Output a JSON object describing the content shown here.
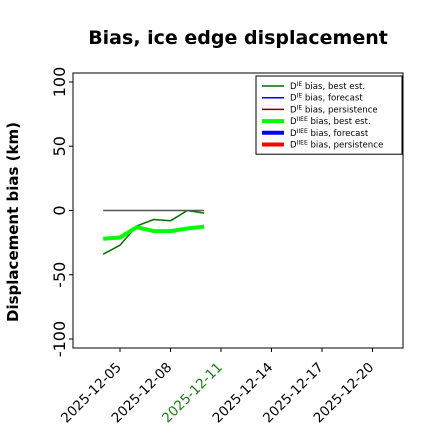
{
  "chart_data": {
    "type": "line",
    "title": "Bias, ice edge displacement",
    "xlabel": "",
    "ylabel": "Displacement bias (km)",
    "ylim": [
      -107,
      107
    ],
    "yticks": [
      100,
      50,
      0,
      -50,
      -100
    ],
    "xticks": [
      "2025-12-05",
      "2025-12-08",
      "2025-12-11",
      "2025-12-14",
      "2025-12-17",
      "2025-12-20"
    ],
    "highlighted_tick": "2025-12-11",
    "highlight_color": "#1a7a1a",
    "grid": false,
    "legend_position": "top-right",
    "legend": [
      {
        "sym": "D",
        "sup": "IE",
        "rest": " bias, best est.",
        "color": "#007000",
        "width": 1.5
      },
      {
        "sym": "D",
        "sup": "IE",
        "rest": " bias, forecast",
        "color": "#0000ff",
        "width": 1.5
      },
      {
        "sym": "D",
        "sup": "IE",
        "rest": " bias, persistence",
        "color": "#7a0000",
        "width": 1.5
      },
      {
        "sym": "D",
        "sup": "IIEE",
        "rest": " bias, best est.",
        "color": "#00ff00",
        "width": 4
      },
      {
        "sym": "D",
        "sup": "IIEE",
        "rest": " bias, forecast",
        "color": "#0000ff",
        "width": 4
      },
      {
        "sym": "D",
        "sup": "IIEE",
        "rest": " bias, persistence",
        "color": "#ff0000",
        "width": 4
      }
    ],
    "series": [
      {
        "name": "DIE bias, best est.",
        "color": "#007000",
        "width": 1.5,
        "x": [
          "2025-12-04",
          "2025-12-05",
          "2025-12-06",
          "2025-12-07",
          "2025-12-08",
          "2025-12-09",
          "2025-12-10"
        ],
        "values": [
          -34,
          -27,
          -12,
          -7,
          -8,
          0,
          -2
        ]
      },
      {
        "name": "DIE bias, persistence",
        "color": "#555555",
        "width": 1.5,
        "x": [
          "2025-12-04",
          "2025-12-10"
        ],
        "values": [
          0,
          0
        ]
      },
      {
        "name": "DIIEE bias, best est.",
        "color": "#00ff00",
        "width": 4,
        "x": [
          "2025-12-04",
          "2025-12-05",
          "2025-12-06",
          "2025-12-07",
          "2025-12-08",
          "2025-12-09",
          "2025-12-10"
        ],
        "values": [
          -22,
          -21,
          -13,
          -16,
          -16,
          -14,
          -12.5
        ]
      }
    ]
  }
}
